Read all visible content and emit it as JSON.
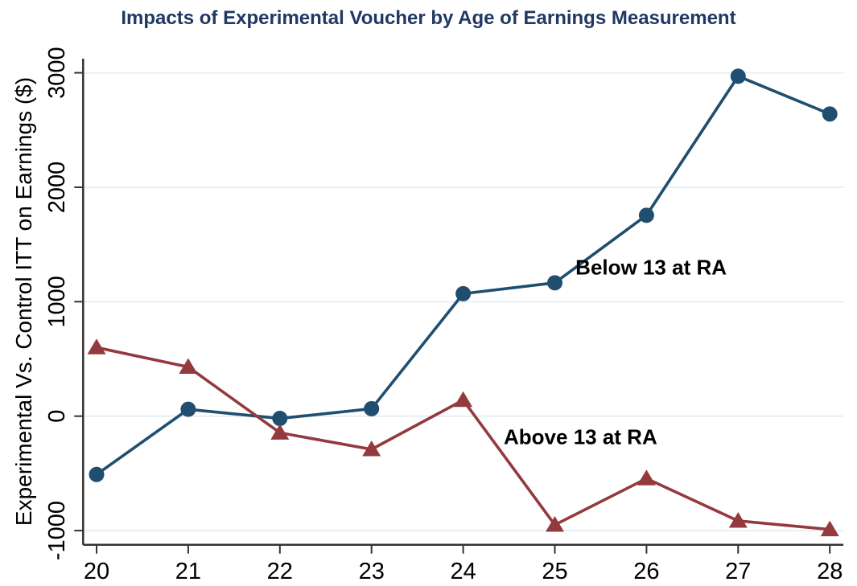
{
  "chart_data": {
    "type": "line",
    "title": "Impacts of Experimental Voucher by Age of Earnings Measurement",
    "xlabel": "",
    "ylabel": "Experimental Vs. Control ITT on Earnings ($)",
    "x": [
      20,
      21,
      22,
      23,
      24,
      25,
      26,
      27,
      28
    ],
    "xticks": [
      20,
      21,
      22,
      23,
      24,
      25,
      26,
      27,
      28
    ],
    "yticks": [
      -1000,
      0,
      1000,
      2000,
      3000
    ],
    "ylim": [
      -1000,
      3000
    ],
    "xlim": [
      20,
      28
    ],
    "grid": "horizontal",
    "legend_position": "inline-annotations",
    "series": [
      {
        "name": "Below 13 at RA",
        "marker": "circle",
        "color": "#1F4E6F",
        "values": [
          -510,
          60,
          -20,
          65,
          1070,
          1165,
          1755,
          2970,
          2640
        ]
      },
      {
        "name": "Above 13 at RA",
        "marker": "triangle",
        "color": "#943A3E",
        "values": [
          600,
          430,
          -145,
          -290,
          140,
          -950,
          -545,
          -915,
          -990
        ]
      }
    ],
    "annotations": [
      {
        "text": "Below 13 at RA",
        "x": 26.05,
        "y": 1300
      },
      {
        "text": "Above 13 at RA",
        "x": 25.28,
        "y": -180
      }
    ],
    "colors": {
      "title": "#1F3864",
      "gridline": "#E6EFF4",
      "axis": "#333333",
      "tick_label": "#000000",
      "annotation": "#000000",
      "background": "#FFFFFF"
    }
  }
}
